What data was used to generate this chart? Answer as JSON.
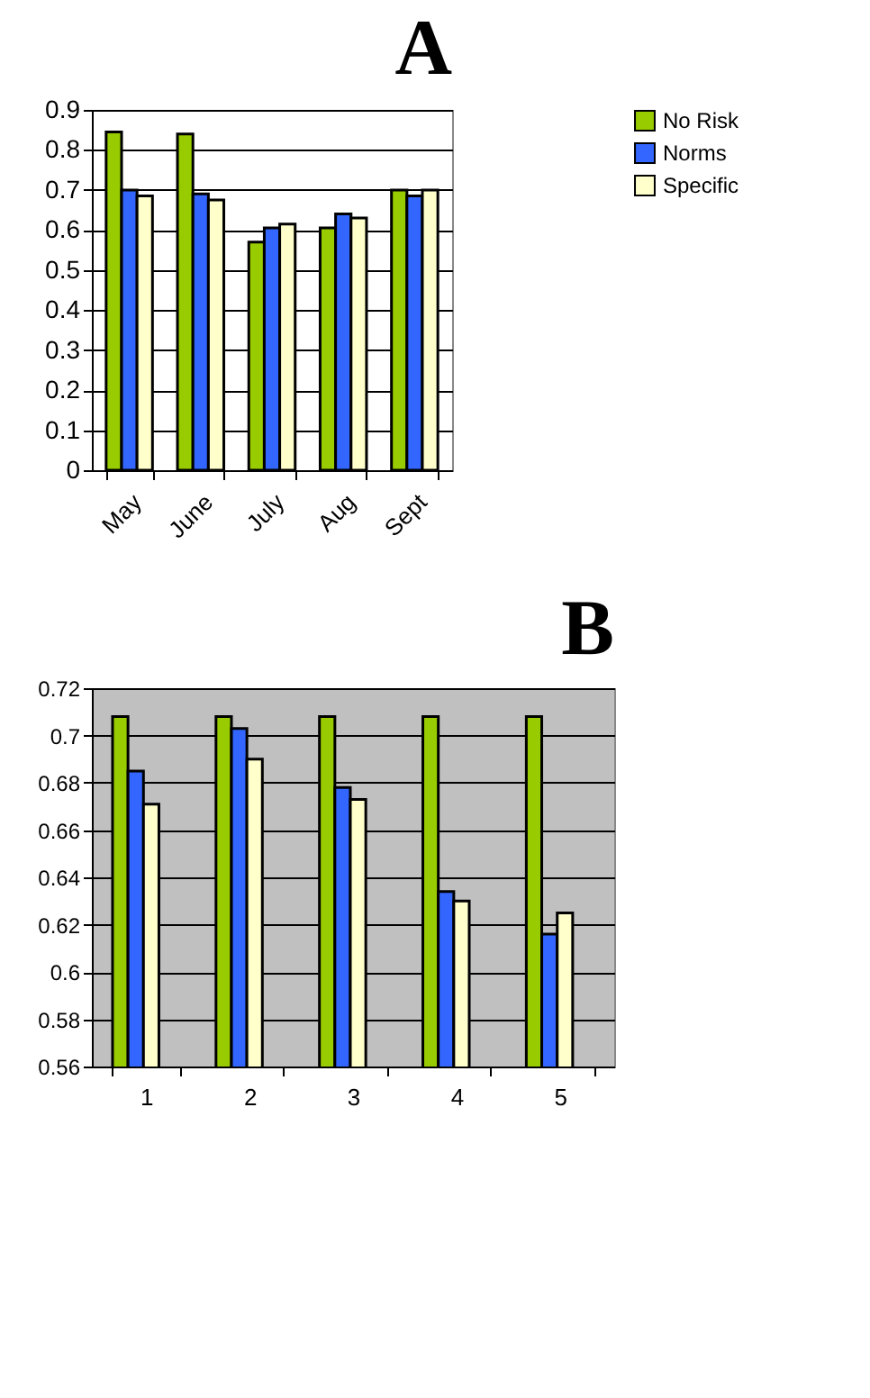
{
  "chart_data": [
    {
      "type": "bar",
      "title": "A",
      "categories": [
        "May",
        "June",
        "July",
        "Aug",
        "Sept"
      ],
      "series": [
        {
          "name": "No Risk",
          "color": "#99cc00",
          "values": [
            0.845,
            0.84,
            0.57,
            0.605,
            0.7
          ]
        },
        {
          "name": "Norms",
          "color": "#3366ff",
          "values": [
            0.7,
            0.69,
            0.605,
            0.64,
            0.685
          ]
        },
        {
          "name": "Specific",
          "color": "#ffffcc",
          "values": [
            0.685,
            0.675,
            0.615,
            0.63,
            0.7
          ]
        }
      ],
      "ylim": [
        0,
        0.9
      ],
      "yticks": [
        0,
        0.1,
        0.2,
        0.3,
        0.4,
        0.5,
        0.6,
        0.7,
        0.8,
        0.9
      ],
      "grid": "y",
      "legend": "right"
    },
    {
      "type": "bar",
      "title": "B",
      "categories": [
        "1",
        "2",
        "3",
        "4",
        "5"
      ],
      "series": [
        {
          "name": "No Risk",
          "color": "#99cc00",
          "values": [
            0.708,
            0.708,
            0.708,
            0.708,
            0.708
          ]
        },
        {
          "name": "Norms",
          "color": "#3366ff",
          "values": [
            0.685,
            0.703,
            0.678,
            0.634,
            0.616
          ]
        },
        {
          "name": "Specific",
          "color": "#ffffcc",
          "values": [
            0.671,
            0.69,
            0.673,
            0.63,
            0.625
          ]
        }
      ],
      "ylim": [
        0.56,
        0.72
      ],
      "yticks": [
        0.56,
        0.58,
        0.6,
        0.62,
        0.64,
        0.66,
        0.68,
        0.7,
        0.72
      ],
      "grid": "y",
      "legend": "right"
    }
  ]
}
